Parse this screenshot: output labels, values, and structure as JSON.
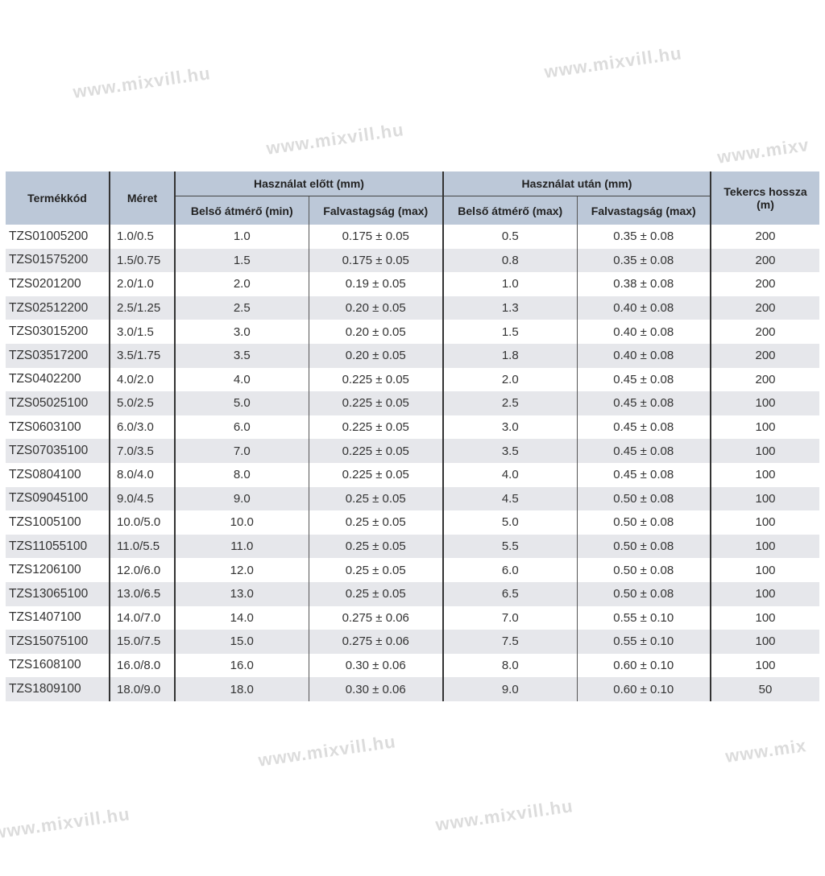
{
  "watermark": "www.mixvill.hu",
  "colors": {
    "header_bg": "#bcc8d8",
    "alt_row": "#e6e7eb"
  },
  "table": {
    "headers": {
      "code": "Termékkód",
      "size": "Méret",
      "before": "Használat előtt (mm)",
      "after": "Használat után (mm)",
      "length": "Tekercs hossza (m)",
      "before_inner": "Belső átmérő (min)",
      "before_wall": "Falvastagság (max)",
      "after_inner": "Belső átmérő (max)",
      "after_wall": "Falvastagság (max)"
    },
    "rows": [
      [
        "TZS01005200",
        "1.0/0.5",
        "1.0",
        "0.175 ± 0.05",
        "0.5",
        "0.35 ± 0.08",
        "200"
      ],
      [
        "TZS01575200",
        "1.5/0.75",
        "1.5",
        "0.175 ± 0.05",
        "0.8",
        "0.35 ± 0.08",
        "200"
      ],
      [
        "TZS0201200",
        "2.0/1.0",
        "2.0",
        "0.19 ± 0.05",
        "1.0",
        "0.38 ± 0.08",
        "200"
      ],
      [
        "TZS02512200",
        "2.5/1.25",
        "2.5",
        "0.20 ± 0.05",
        "1.3",
        "0.40 ± 0.08",
        "200"
      ],
      [
        "TZS03015200",
        "3.0/1.5",
        "3.0",
        "0.20 ± 0.05",
        "1.5",
        "0.40 ± 0.08",
        "200"
      ],
      [
        "TZS03517200",
        "3.5/1.75",
        "3.5",
        "0.20 ± 0.05",
        "1.8",
        "0.40 ± 0.08",
        "200"
      ],
      [
        "TZS0402200",
        "4.0/2.0",
        "4.0",
        "0.225 ± 0.05",
        "2.0",
        "0.45 ± 0.08",
        "200"
      ],
      [
        "TZS05025100",
        "5.0/2.5",
        "5.0",
        "0.225 ± 0.05",
        "2.5",
        "0.45 ± 0.08",
        "100"
      ],
      [
        "TZS0603100",
        "6.0/3.0",
        "6.0",
        "0.225 ± 0.05",
        "3.0",
        "0.45 ± 0.08",
        "100"
      ],
      [
        "TZS07035100",
        "7.0/3.5",
        "7.0",
        "0.225 ± 0.05",
        "3.5",
        "0.45 ± 0.08",
        "100"
      ],
      [
        "TZS0804100",
        "8.0/4.0",
        "8.0",
        "0.225 ± 0.05",
        "4.0",
        "0.45 ± 0.08",
        "100"
      ],
      [
        "TZS09045100",
        "9.0/4.5",
        "9.0",
        "0.25 ± 0.05",
        "4.5",
        "0.50 ± 0.08",
        "100"
      ],
      [
        "TZS1005100",
        "10.0/5.0",
        "10.0",
        "0.25 ± 0.05",
        "5.0",
        "0.50 ± 0.08",
        "100"
      ],
      [
        "TZS11055100",
        "11.0/5.5",
        "11.0",
        "0.25 ± 0.05",
        "5.5",
        "0.50 ± 0.08",
        "100"
      ],
      [
        "TZS1206100",
        "12.0/6.0",
        "12.0",
        "0.25 ± 0.05",
        "6.0",
        "0.50 ± 0.08",
        "100"
      ],
      [
        "TZS13065100",
        "13.0/6.5",
        "13.0",
        "0.25 ± 0.05",
        "6.5",
        "0.50 ± 0.08",
        "100"
      ],
      [
        "TZS1407100",
        "14.0/7.0",
        "14.0",
        "0.275 ± 0.06",
        "7.0",
        "0.55 ± 0.10",
        "100"
      ],
      [
        "TZS15075100",
        "15.0/7.5",
        "15.0",
        "0.275 ± 0.06",
        "7.5",
        "0.55 ± 0.10",
        "100"
      ],
      [
        "TZS1608100",
        "16.0/8.0",
        "16.0",
        "0.30 ± 0.06",
        "8.0",
        "0.60 ± 0.10",
        "100"
      ],
      [
        "TZS1809100",
        "18.0/9.0",
        "18.0",
        "0.30 ± 0.06",
        "9.0",
        "0.60 ± 0.10",
        "50"
      ]
    ]
  }
}
